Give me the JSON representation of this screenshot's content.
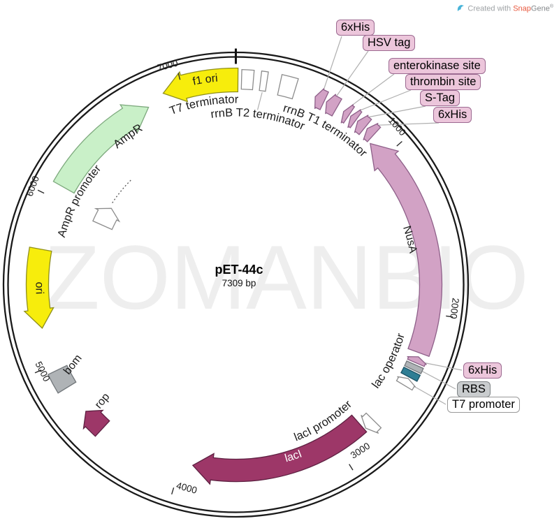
{
  "credit": {
    "prefix": "Created with ",
    "brand_a": "Snap",
    "brand_b": "Gene",
    "registered": "®"
  },
  "watermark": "ZOMANBIO",
  "plasmid": {
    "name": "pET-44c",
    "size_label": "7309 bp"
  },
  "tick_labels": [
    "1000",
    "2000",
    "3000",
    "4000",
    "5000",
    "6000",
    "7000"
  ],
  "features": [
    {
      "id": "f1ori",
      "label": "f1 ori"
    },
    {
      "id": "t7term",
      "label": "T7 terminator"
    },
    {
      "id": "rrnbT2",
      "label": "rrnB T2 terminator"
    },
    {
      "id": "rrnbT1",
      "label": "rrnB T1 terminator"
    },
    {
      "id": "his1",
      "label": "6xHis"
    },
    {
      "id": "hsv",
      "label": "HSV tag"
    },
    {
      "id": "entk",
      "label": "enterokinase site"
    },
    {
      "id": "thr",
      "label": "thrombin site"
    },
    {
      "id": "stag",
      "label": "S-Tag"
    },
    {
      "id": "his2",
      "label": "6xHis"
    },
    {
      "id": "nusa",
      "label": "NusA"
    },
    {
      "id": "his3",
      "label": "6xHis"
    },
    {
      "id": "rbs",
      "label": "RBS"
    },
    {
      "id": "lacop",
      "label": "lac operator"
    },
    {
      "id": "t7prom",
      "label": "T7 promoter"
    },
    {
      "id": "laciprom",
      "label": "lacI promoter"
    },
    {
      "id": "laci",
      "label": "lacI"
    },
    {
      "id": "rop",
      "label": "rop"
    },
    {
      "id": "bom",
      "label": "bom"
    },
    {
      "id": "ori",
      "label": "ori"
    },
    {
      "id": "amprprom",
      "label": "AmpR promoter"
    },
    {
      "id": "ampr",
      "label": "AmpR"
    }
  ],
  "colors": {
    "ring": "#1A1A1A",
    "leader": "#AFAFAF",
    "tick_text": "#1A1A1A",
    "pink_fill": "#D2A2C5",
    "pink_stroke": "#8E6089",
    "yellow_fill": "#F7ED0C",
    "yellow_stroke": "#8F8F1B",
    "green_fill": "#C9F0C8",
    "green_stroke": "#7CA87C",
    "magenta_fill": "#9D3768",
    "magenta_stroke": "#5E2142",
    "gray_fill": "#AFB3B6",
    "gray_stroke": "#72777B",
    "teal_fill": "#2F7E94",
    "teal_stroke": "#1C5366",
    "white_fill": "#FFFFFF",
    "white_stroke": "#8C8C8C",
    "label_pink_bg": "#ECC6DB",
    "label_pink_border": "#9C6A91",
    "label_gray_bg": "#C9CCCE",
    "label_gray_border": "#7F8486",
    "label_white_bg": "#FFFFFF",
    "label_white_border": "#999999",
    "watermark": "#EEEEEE",
    "credit_brand": "#E8573D",
    "credit_icon": "#49B4D9"
  }
}
